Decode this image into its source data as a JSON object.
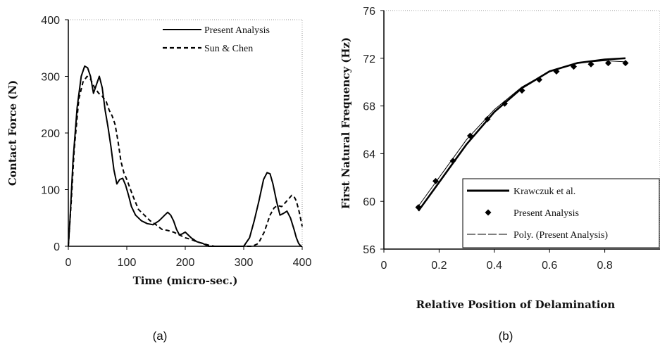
{
  "chart_data": [
    {
      "type": "line",
      "xlabel": "Time (micro-sec.)",
      "ylabel": "Contact Force (N)",
      "xlim": [
        0,
        400
      ],
      "ylim": [
        0,
        400
      ],
      "x_ticks": [
        "0",
        "100",
        "200",
        "300",
        "400"
      ],
      "y_ticks": [
        "0",
        "100",
        "200",
        "300",
        "400"
      ],
      "caption": "(a)",
      "legend_position": "top-right",
      "series": [
        {
          "name": "Present Analysis",
          "style": "solid",
          "x": [
            0,
            3,
            8,
            15,
            22,
            28,
            33,
            38,
            43,
            48,
            53,
            58,
            63,
            68,
            73,
            78,
            83,
            88,
            93,
            98,
            103,
            108,
            115,
            125,
            135,
            145,
            155,
            160,
            165,
            170,
            175,
            180,
            185,
            190,
            195,
            200,
            210,
            220,
            230,
            240,
            250,
            300,
            310,
            318,
            326,
            334,
            340,
            345,
            350,
            356,
            362,
            368,
            374,
            380,
            386,
            390,
            394,
            398,
            400
          ],
          "y": [
            0,
            50,
            150,
            245,
            300,
            318,
            315,
            300,
            270,
            285,
            300,
            280,
            240,
            210,
            175,
            135,
            110,
            118,
            120,
            108,
            90,
            70,
            55,
            45,
            40,
            38,
            45,
            50,
            55,
            60,
            55,
            45,
            30,
            20,
            22,
            25,
            15,
            8,
            5,
            0,
            0,
            0,
            15,
            45,
            80,
            118,
            130,
            128,
            110,
            80,
            55,
            58,
            62,
            50,
            30,
            15,
            5,
            0,
            0
          ]
        },
        {
          "name": "Sun & Chen",
          "style": "dashed",
          "x": [
            0,
            5,
            10,
            18,
            25,
            32,
            38,
            45,
            52,
            58,
            65,
            70,
            75,
            80,
            85,
            90,
            95,
            100,
            110,
            120,
            130,
            140,
            150,
            160,
            170,
            180,
            190,
            200,
            210,
            220,
            230,
            240,
            250,
            300,
            315,
            325,
            335,
            345,
            352,
            358,
            365,
            372,
            378,
            382,
            386,
            390,
            395,
            400
          ],
          "y": [
            0,
            80,
            170,
            260,
            290,
            300,
            295,
            280,
            270,
            265,
            255,
            240,
            230,
            215,
            185,
            150,
            130,
            118,
            90,
            65,
            55,
            45,
            38,
            30,
            28,
            25,
            20,
            15,
            12,
            8,
            5,
            2,
            0,
            0,
            0,
            5,
            25,
            55,
            68,
            72,
            70,
            78,
            85,
            90,
            88,
            80,
            60,
            35
          ]
        }
      ]
    },
    {
      "type": "line",
      "xlabel": "Relative Position of Delamination",
      "ylabel": "First Natural Frequency (Hz)",
      "xlim": [
        0,
        1
      ],
      "ylim": [
        56,
        76
      ],
      "x_ticks": [
        "0",
        "0.2",
        "0.4",
        "0.6",
        "0.8"
      ],
      "y_ticks": [
        "56",
        "60",
        "64",
        "68",
        "72",
        "76"
      ],
      "caption": "(b)",
      "legend_position": "bottom-right",
      "series": [
        {
          "name": "Krawczuk et al.",
          "style": "solid-thick",
          "x": [
            0.125,
            0.2,
            0.3,
            0.4,
            0.5,
            0.6,
            0.7,
            0.8,
            0.875
          ],
          "y": [
            59.2,
            61.6,
            64.8,
            67.5,
            69.5,
            70.9,
            71.6,
            71.9,
            72.0
          ]
        },
        {
          "name": "Present Analysis",
          "style": "markers",
          "x": [
            0.125,
            0.1875,
            0.25,
            0.3125,
            0.375,
            0.4375,
            0.5,
            0.5625,
            0.625,
            0.6875,
            0.75,
            0.8125,
            0.875
          ],
          "y": [
            59.5,
            61.7,
            63.4,
            65.5,
            66.9,
            68.2,
            69.3,
            70.2,
            70.9,
            71.3,
            71.5,
            71.6,
            71.6
          ]
        },
        {
          "name": "Poly. (Present Analysis)",
          "style": "solid-thin",
          "x": [
            0.125,
            0.2,
            0.3,
            0.4,
            0.5,
            0.6,
            0.7,
            0.8,
            0.875
          ],
          "y": [
            59.6,
            62.0,
            65.2,
            67.7,
            69.6,
            70.9,
            71.6,
            71.8,
            71.7
          ]
        }
      ]
    }
  ]
}
